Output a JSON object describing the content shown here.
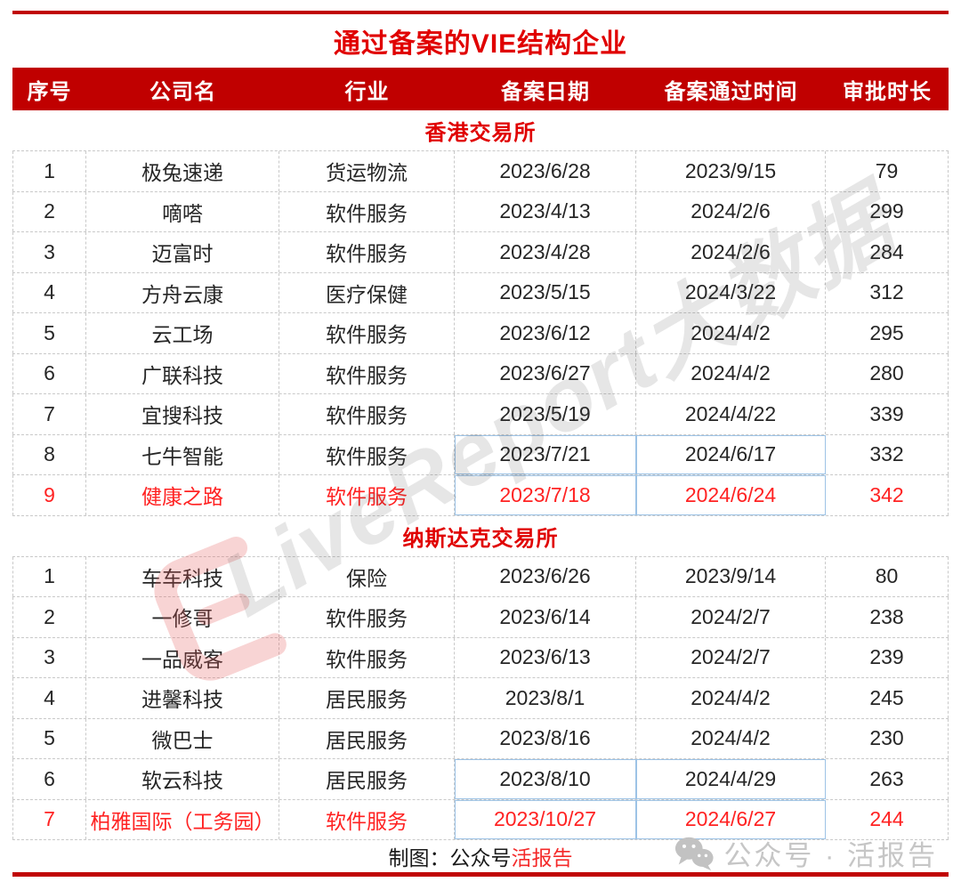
{
  "title": "通过备案的VIE结构企业",
  "chart_data": {
    "type": "table",
    "title": "通过备案的VIE结构企业",
    "columns": [
      "序号",
      "公司名",
      "行业",
      "备案日期",
      "备案通过时间",
      "审批时长"
    ],
    "sections": [
      {
        "name": "香港交易所",
        "rows": [
          {
            "cells": [
              "1",
              "极兔速递",
              "货运物流",
              "2023/6/28",
              "2023/9/15",
              "79"
            ],
            "red": false,
            "hl": false
          },
          {
            "cells": [
              "2",
              "嘀嗒",
              "软件服务",
              "2023/4/13",
              "2024/2/6",
              "299"
            ],
            "red": false,
            "hl": false
          },
          {
            "cells": [
              "3",
              "迈富时",
              "软件服务",
              "2023/4/28",
              "2024/2/6",
              "284"
            ],
            "red": false,
            "hl": false
          },
          {
            "cells": [
              "4",
              "方舟云康",
              "医疗保健",
              "2023/5/15",
              "2024/3/22",
              "312"
            ],
            "red": false,
            "hl": false
          },
          {
            "cells": [
              "5",
              "云工场",
              "软件服务",
              "2023/6/12",
              "2024/4/2",
              "295"
            ],
            "red": false,
            "hl": false
          },
          {
            "cells": [
              "6",
              "广联科技",
              "软件服务",
              "2023/6/27",
              "2024/4/2",
              "280"
            ],
            "red": false,
            "hl": false
          },
          {
            "cells": [
              "7",
              "宜搜科技",
              "软件服务",
              "2023/5/19",
              "2024/4/22",
              "339"
            ],
            "red": false,
            "hl": false
          },
          {
            "cells": [
              "8",
              "七牛智能",
              "软件服务",
              "2023/7/21",
              "2024/6/17",
              "332"
            ],
            "red": false,
            "hl": true
          },
          {
            "cells": [
              "9",
              "健康之路",
              "软件服务",
              "2023/7/18",
              "2024/6/24",
              "342"
            ],
            "red": true,
            "hl": true
          }
        ]
      },
      {
        "name": "纳斯达克交易所",
        "rows": [
          {
            "cells": [
              "1",
              "车车科技",
              "保险",
              "2023/6/26",
              "2023/9/14",
              "80"
            ],
            "red": false,
            "hl": false
          },
          {
            "cells": [
              "2",
              "一修哥",
              "软件服务",
              "2023/6/14",
              "2024/2/7",
              "238"
            ],
            "red": false,
            "hl": false
          },
          {
            "cells": [
              "3",
              "一品威客",
              "软件服务",
              "2023/6/13",
              "2024/2/7",
              "239"
            ],
            "red": false,
            "hl": false
          },
          {
            "cells": [
              "4",
              "进馨科技",
              "居民服务",
              "2023/8/1",
              "2024/4/2",
              "245"
            ],
            "red": false,
            "hl": false
          },
          {
            "cells": [
              "5",
              "微巴士",
              "居民服务",
              "2023/8/16",
              "2024/4/2",
              "230"
            ],
            "red": false,
            "hl": false
          },
          {
            "cells": [
              "6",
              "软云科技",
              "居民服务",
              "2023/8/10",
              "2024/4/29",
              "263"
            ],
            "red": false,
            "hl": true
          },
          {
            "cells": [
              "7",
              "柏雅国际（工务园）",
              "软件服务",
              "2023/10/27",
              "2024/6/27",
              "244"
            ],
            "red": true,
            "hl": true
          }
        ]
      }
    ],
    "footnote": "制图：公众号活报告"
  },
  "footer": {
    "prefix": "制图：公众号",
    "brand": "活报告"
  },
  "watermarks": {
    "diagonal": "LiveReport大数据",
    "wechat": "公众号 · 活报告"
  },
  "colors": {
    "header_bg": "#C00000",
    "title_red": "#E00000",
    "section_red": "#E00000",
    "highlight_row_text": "#FF2222",
    "cell_border": "#C9C9C9",
    "highlight_cell_border": "#9DC3E6",
    "rule_red": "#C00000",
    "watermark_gray": "#C6C6C6"
  }
}
